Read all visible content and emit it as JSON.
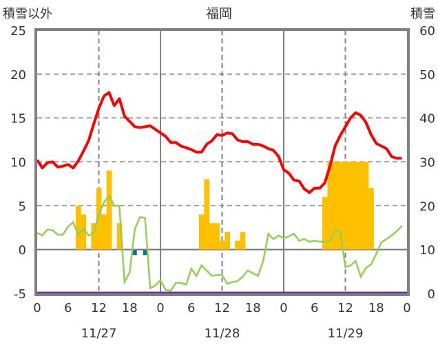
{
  "chart_data": {
    "type": "bar",
    "title": "福岡",
    "ylabel": "積雪以外",
    "ylabel_right": "積雪",
    "ylim": [
      -5,
      25
    ],
    "ylim_right": [
      0,
      60
    ],
    "yticks": [
      25,
      20,
      15,
      10,
      5,
      0,
      -5
    ],
    "yticks_right": [
      60,
      50,
      40,
      30,
      20,
      10,
      0
    ],
    "xlim_hours": [
      0,
      72
    ],
    "xtick_labels": [
      "0",
      "6",
      "12",
      "18",
      "0",
      "6",
      "12",
      "18",
      "0",
      "6",
      "12",
      "18",
      "0"
    ],
    "day_labels": [
      "11/27",
      "11/28",
      "11/29"
    ],
    "grid": true,
    "colors": {
      "temp": "#ff0000",
      "green": "#92d050",
      "bars": "#ffc000",
      "blue": "#0070c0",
      "snow": "#7030a0",
      "frame": "#808080"
    },
    "bars": {
      "name": "precipitation",
      "hours": [
        8,
        9,
        11,
        12,
        13,
        14,
        16,
        32,
        33,
        34,
        35,
        36,
        37,
        39,
        40,
        56,
        57,
        58,
        59,
        60,
        61,
        62,
        63,
        64,
        65
      ],
      "values": [
        5,
        4,
        3,
        7,
        4,
        9,
        3,
        4,
        8,
        3,
        3,
        1,
        2,
        1,
        2,
        6,
        10,
        10,
        10,
        10,
        10,
        10,
        10,
        10,
        7
      ]
    },
    "blue_bars": {
      "hours": [
        19,
        21
      ],
      "values": [
        -0.4,
        -0.4
      ]
    },
    "series": [
      {
        "name": "red-line",
        "values": [
          10.2,
          9.3,
          9.9,
          10.0,
          9.4,
          9.5,
          9.7,
          9.3,
          10.1,
          11.2,
          12.4,
          14.3,
          16.1,
          17.5,
          17.9,
          16.4,
          17.2,
          15.2,
          14.6,
          14.0,
          13.9,
          14.0,
          14.1,
          13.7,
          13.3,
          12.9,
          12.2,
          12.2,
          11.8,
          11.6,
          11.4,
          11.1,
          11.1,
          12.0,
          12.4,
          13.1,
          13.0,
          13.3,
          13.2,
          12.5,
          12.3,
          12.3,
          12.0,
          12.0,
          11.8,
          11.5,
          11.3,
          10.6,
          9.1,
          8.7,
          7.9,
          7.8,
          6.9,
          6.5,
          7.0,
          7.0,
          7.6,
          9.5,
          11.8,
          13.0,
          14.0,
          15.0,
          15.6,
          15.3,
          14.5,
          13.1,
          12.1,
          11.8,
          11.5,
          10.6,
          10.4,
          10.4
        ]
      },
      {
        "name": "green-line",
        "values": [
          1.9,
          1.6,
          2.3,
          2.2,
          1.7,
          1.7,
          2.6,
          3.1,
          1.7,
          2.4,
          1.6,
          1.9,
          4.0,
          5.4,
          6.1,
          5.0,
          5.0,
          -3.7,
          -2.6,
          2.3,
          3.7,
          3.6,
          -4.4,
          -4.1,
          -3.5,
          -4.6,
          -4.7,
          -3.8,
          -3.8,
          -4.0,
          -2.2,
          -3.0,
          -1.8,
          -2.4,
          -3.0,
          -2.9,
          -2.9,
          -3.9,
          -3.7,
          -3.6,
          -3.1,
          -2.4,
          -2.7,
          -3.0,
          -1.3,
          1.8,
          1.2,
          1.6,
          1.3,
          1.5,
          1.8,
          1.0,
          1.2,
          0.9,
          1.0,
          0.9,
          0.9,
          0.9,
          2.2,
          2.0,
          -2.0,
          -1.8,
          -1.3,
          -3.1,
          -2.1,
          -1.7,
          -0.5,
          0.8,
          1.2,
          1.6,
          2.1,
          2.7
        ]
      },
      {
        "name": "snow-depth",
        "axis": "right",
        "values": [
          0,
          0
        ]
      }
    ]
  }
}
